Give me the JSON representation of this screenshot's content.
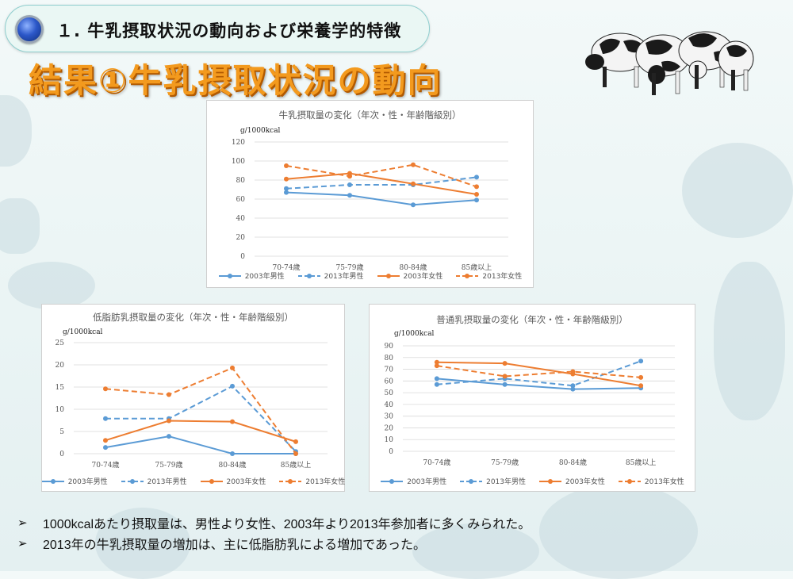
{
  "header": {
    "title": "１. 牛乳摂取状況の動向および栄養学的特徴"
  },
  "page_title": "結果①牛乳摂取状況の動向",
  "colors": {
    "blue": "#5b9bd5",
    "orange": "#ed7d31",
    "title_orange": "#f39a1e"
  },
  "series_meta": [
    {
      "name": "2003年男性",
      "color": "#5b9bd5",
      "dashed": false
    },
    {
      "name": "2013年男性",
      "color": "#5b9bd5",
      "dashed": true
    },
    {
      "name": "2003年女性",
      "color": "#ed7d31",
      "dashed": false
    },
    {
      "name": "2013年女性",
      "color": "#ed7d31",
      "dashed": true
    }
  ],
  "chart_data": [
    {
      "type": "line",
      "title": "牛乳摂取量の変化（年次・性・年齢階級別）",
      "ylabel": "g/1000kcal",
      "categories": [
        "70-74歳",
        "75-79歳",
        "80-84歳",
        "85歳以上"
      ],
      "ylim": [
        0,
        120
      ],
      "yticks": [
        0,
        20,
        40,
        60,
        80,
        100,
        120
      ],
      "legend_position": "bottom",
      "series": [
        {
          "name": "2003年男性",
          "values": [
            67,
            64,
            54,
            59
          ]
        },
        {
          "name": "2013年男性",
          "values": [
            71,
            75,
            75,
            83
          ]
        },
        {
          "name": "2003年女性",
          "values": [
            81,
            87,
            76,
            65
          ]
        },
        {
          "name": "2013年女性",
          "values": [
            95,
            84,
            96,
            73
          ]
        }
      ]
    },
    {
      "type": "line",
      "title": "低脂肪乳摂取量の変化（年次・性・年齢階級別）",
      "ylabel": "g/1000kcal",
      "categories": [
        "70-74歳",
        "75-79歳",
        "80-84歳",
        "85歳以上"
      ],
      "ylim": [
        0,
        25
      ],
      "yticks": [
        0,
        5,
        10,
        15,
        20,
        25
      ],
      "legend_position": "bottom",
      "series": [
        {
          "name": "2003年男性",
          "values": [
            1.4,
            3.9,
            0,
            0
          ]
        },
        {
          "name": "2013年男性",
          "values": [
            7.9,
            7.9,
            15.2,
            0.5
          ]
        },
        {
          "name": "2003年女性",
          "values": [
            3.0,
            7.4,
            7.2,
            2.7
          ]
        },
        {
          "name": "2013年女性",
          "values": [
            14.6,
            13.3,
            19.3,
            0
          ]
        }
      ]
    },
    {
      "type": "line",
      "title": "普通乳摂取量の変化（年次・性・年齢階級別）",
      "ylabel": "g/1000kcal",
      "categories": [
        "70-74歳",
        "75-79歳",
        "80-84歳",
        "85歳以上"
      ],
      "ylim": [
        0,
        90
      ],
      "yticks": [
        0,
        10,
        20,
        30,
        40,
        50,
        60,
        70,
        80,
        90
      ],
      "legend_position": "bottom",
      "series": [
        {
          "name": "2003年男性",
          "values": [
            62,
            57,
            53,
            54
          ]
        },
        {
          "name": "2013年男性",
          "values": [
            57,
            62,
            56,
            77
          ]
        },
        {
          "name": "2003年女性",
          "values": [
            76,
            75,
            66,
            56
          ]
        },
        {
          "name": "2013年女性",
          "values": [
            73,
            64,
            68,
            63
          ]
        }
      ]
    }
  ],
  "bullets": [
    "1000kcalあたり摂取量は、男性より女性、2003年より2013年参加者に多くみられた。",
    "2013年の牛乳摂取量の増加は、主に低脂肪乳による増加であった。"
  ],
  "bullet_symbol": "➢"
}
